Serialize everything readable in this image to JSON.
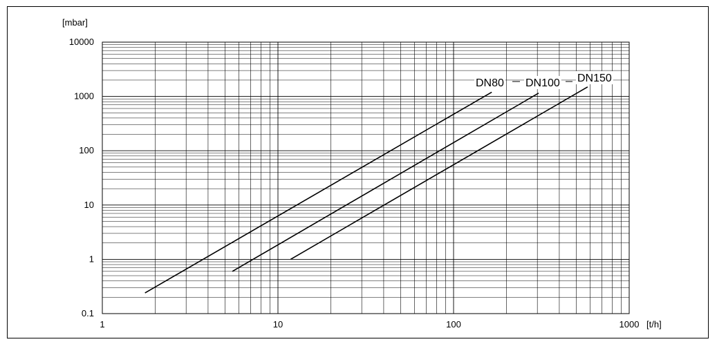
{
  "chart_data": {
    "type": "line",
    "x_scale": "log",
    "y_scale": "log",
    "xlim": [
      1,
      1000
    ],
    "ylim": [
      0.1,
      10000
    ],
    "x_ticks": [
      "1",
      "10",
      "100",
      "1000"
    ],
    "y_ticks": [
      "0.1",
      "1",
      "10",
      "100",
      "1000",
      "10000"
    ],
    "x_unit": "[t/h]",
    "y_unit": "[mbar]",
    "grid": true,
    "series": [
      {
        "name": "DN80",
        "x": [
          1.75,
          165
        ],
        "y": [
          0.24,
          1200
        ]
      },
      {
        "name": "DN100",
        "x": [
          5.5,
          305
        ],
        "y": [
          0.6,
          1150
        ]
      },
      {
        "name": "DN150",
        "x": [
          11.8,
          580
        ],
        "y": [
          1.0,
          1500
        ]
      }
    ]
  }
}
